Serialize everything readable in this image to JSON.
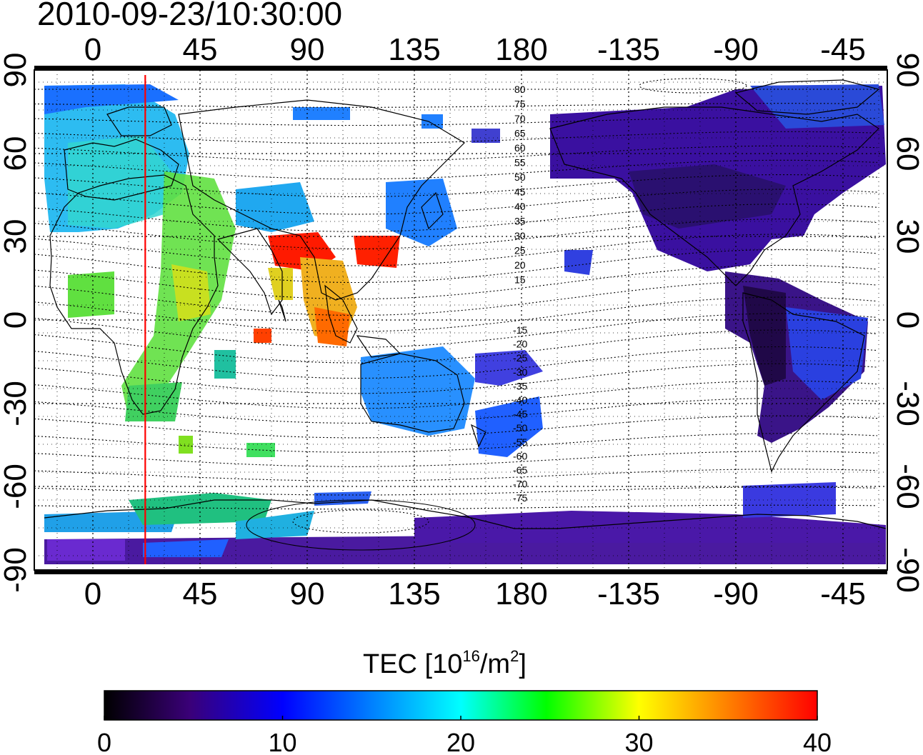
{
  "title": "2010-09-23/10:30:00",
  "map": {
    "top_lon_ticks": [
      "0",
      "45",
      "90",
      "135",
      "180",
      "-135",
      "-90",
      "-45"
    ],
    "bottom_lon_ticks": [
      "0",
      "45",
      "90",
      "135",
      "180",
      "-135",
      "-90",
      "-45"
    ],
    "left_lat_ticks": [
      "90",
      "60",
      "30",
      "0",
      "-30",
      "-60",
      "-90"
    ],
    "right_lat_ticks": [
      "90",
      "60",
      "30",
      "0",
      "-30",
      "-60",
      "-90"
    ],
    "contour_labels": [
      "80",
      "75",
      "70",
      "65",
      "60",
      "55",
      "50",
      "45",
      "40",
      "35",
      "30",
      "25",
      "20",
      "15",
      "-15",
      "-20",
      "-25",
      "-30",
      "-35",
      "-40",
      "-45",
      "-50",
      "-55",
      "-60",
      "-65",
      "-70",
      "-75"
    ],
    "marker_longitude": 22,
    "marker_color": "#ff0000"
  },
  "colorbar": {
    "label_prefix": "TEC  [10",
    "label_sup1": "16",
    "label_mid": "/m",
    "label_sup2": "2",
    "label_suffix": "]",
    "ticks": [
      "0",
      "10",
      "20",
      "30",
      "40"
    ],
    "range": [
      0,
      40
    ],
    "colors": [
      "#000000",
      "#3a0078",
      "#0000ff",
      "#00ffff",
      "#00ff00",
      "#ffff00",
      "#ff0000"
    ]
  }
}
